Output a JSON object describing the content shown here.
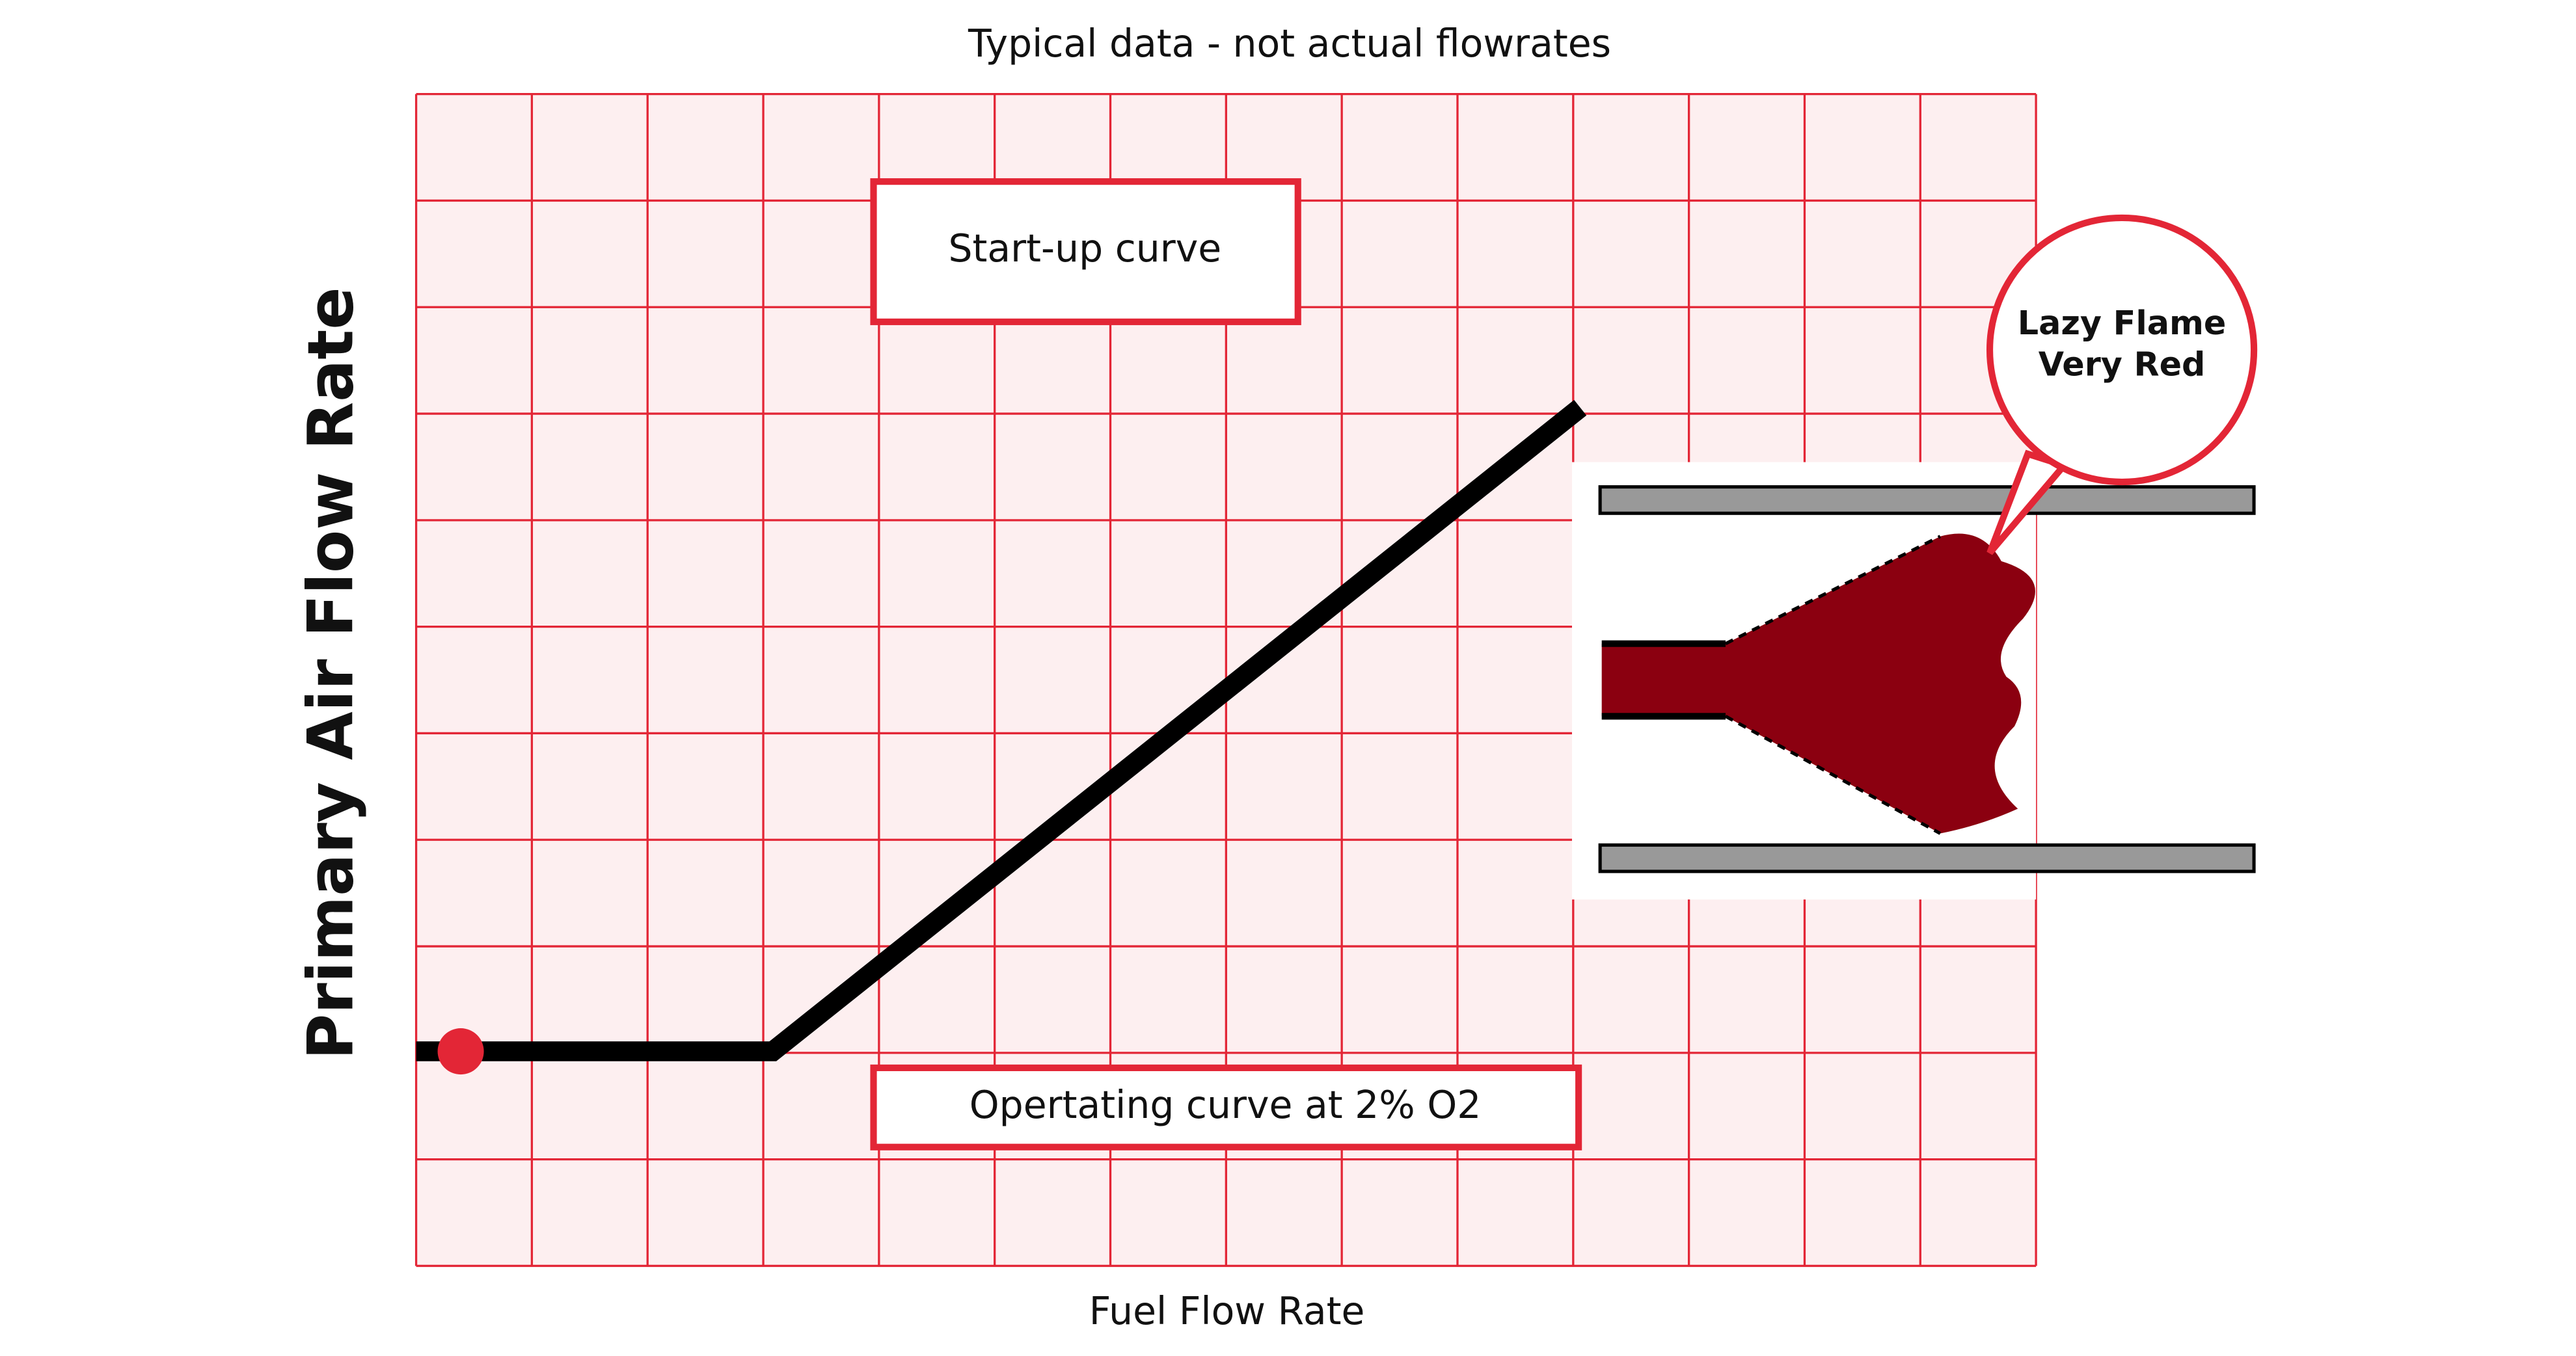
{
  "title": "Typical data - not actual flowrates",
  "y_axis_label": "Primary Air Flow Rate",
  "x_axis_label": "Fuel Flow Rate",
  "annotations": {
    "startup": "Start-up curve",
    "operating": "Opertating curve at 2% O2"
  },
  "callout": {
    "lines": [
      "Lazy Flame",
      "Very Red"
    ]
  }
}
